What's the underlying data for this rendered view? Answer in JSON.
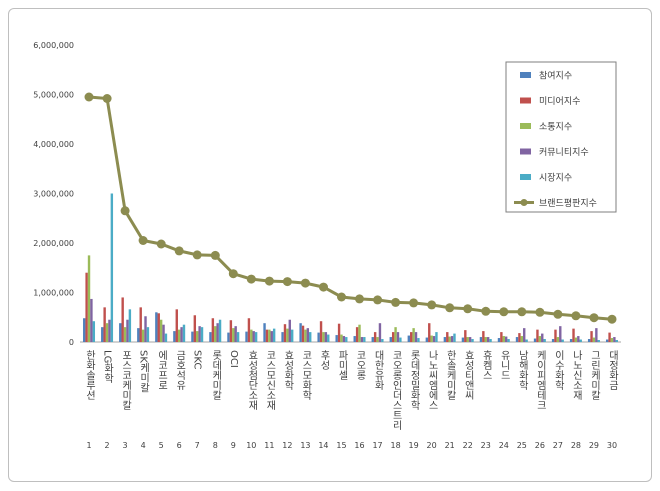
{
  "chart_data": {
    "type": "bar",
    "categories": [
      "한화솔루션",
      "LG화학",
      "포스코케미칼",
      "SK케미칼",
      "에코프로",
      "금호석유",
      "SKC",
      "롯데케미칼",
      "OCI",
      "효성첨단소재",
      "코스모신소재",
      "효성화학",
      "코스모화학",
      "후성",
      "파미셀",
      "코오롱",
      "대한유화",
      "코오롱인더스트리",
      "롯데정밀화학",
      "나노씨엠에스",
      "한솔케미칼",
      "효성티앤씨",
      "휴켐스",
      "유니드",
      "남해화학",
      "케이피엠테크",
      "이수화학",
      "나노신소재",
      "그린케미칼",
      "대정화금"
    ],
    "ranks": [
      "1",
      "2",
      "3",
      "4",
      "5",
      "6",
      "7",
      "8",
      "9",
      "10",
      "11",
      "12",
      "13",
      "14",
      "15",
      "16",
      "17",
      "18",
      "19",
      "20",
      "21",
      "22",
      "23",
      "24",
      "25",
      "26",
      "27",
      "28",
      "29",
      "30"
    ],
    "ylim": [
      0,
      6000000
    ],
    "yticks": [
      "0",
      "1,000,000",
      "2,000,000",
      "3,000,000",
      "4,000,000",
      "5,000,000",
      "6,000,000"
    ],
    "ytick_values": [
      0,
      1000000,
      2000000,
      3000000,
      4000000,
      5000000,
      6000000
    ],
    "legend_position": "top-right",
    "grid": false,
    "series": [
      {
        "name": "참여지수",
        "kind": "bar",
        "color": "#4f81bd",
        "values": [
          480000,
          300000,
          380000,
          280000,
          600000,
          220000,
          210000,
          200000,
          190000,
          210000,
          380000,
          200000,
          380000,
          190000,
          140000,
          120000,
          100000,
          100000,
          130000,
          90000,
          100000,
          90000,
          100000,
          80000,
          100000,
          70000,
          60000,
          60000,
          60000,
          50000
        ]
      },
      {
        "name": "미디어지수",
        "kind": "bar",
        "color": "#c0504d",
        "values": [
          1400000,
          700000,
          900000,
          700000,
          580000,
          660000,
          540000,
          480000,
          440000,
          480000,
          250000,
          360000,
          330000,
          420000,
          370000,
          300000,
          200000,
          200000,
          200000,
          380000,
          200000,
          240000,
          220000,
          200000,
          180000,
          250000,
          250000,
          270000,
          220000,
          190000
        ]
      },
      {
        "name": "소통지수",
        "kind": "bar",
        "color": "#9bbb59",
        "values": [
          1750000,
          380000,
          300000,
          250000,
          450000,
          250000,
          220000,
          320000,
          280000,
          250000,
          250000,
          270000,
          250000,
          200000,
          150000,
          350000,
          100000,
          300000,
          280000,
          130000,
          110000,
          100000,
          100000,
          120000,
          120000,
          120000,
          100000,
          90000,
          90000,
          80000
        ]
      },
      {
        "name": "커뮤니티지수",
        "kind": "bar",
        "color": "#8064a2",
        "values": [
          870000,
          450000,
          450000,
          520000,
          350000,
          300000,
          320000,
          380000,
          320000,
          220000,
          220000,
          450000,
          280000,
          200000,
          120000,
          100000,
          380000,
          200000,
          200000,
          120000,
          120000,
          100000,
          100000,
          110000,
          280000,
          170000,
          320000,
          120000,
          280000,
          100000
        ]
      },
      {
        "name": "시장지수",
        "kind": "bar",
        "color": "#4bacc6",
        "values": [
          420000,
          3000000,
          660000,
          300000,
          170000,
          350000,
          300000,
          450000,
          200000,
          200000,
          270000,
          250000,
          200000,
          150000,
          100000,
          100000,
          60000,
          90000,
          80000,
          200000,
          170000,
          60000,
          60000,
          60000,
          50000,
          60000,
          50000,
          50000,
          40000,
          40000
        ]
      },
      {
        "name": "브랜드평판지수",
        "kind": "line",
        "color": "#8c8c50",
        "values": [
          4950000,
          4920000,
          2650000,
          2050000,
          1980000,
          1840000,
          1760000,
          1750000,
          1380000,
          1270000,
          1230000,
          1220000,
          1190000,
          1110000,
          910000,
          870000,
          850000,
          800000,
          790000,
          750000,
          690000,
          670000,
          620000,
          610000,
          610000,
          600000,
          560000,
          530000,
          490000,
          460000
        ]
      }
    ]
  }
}
